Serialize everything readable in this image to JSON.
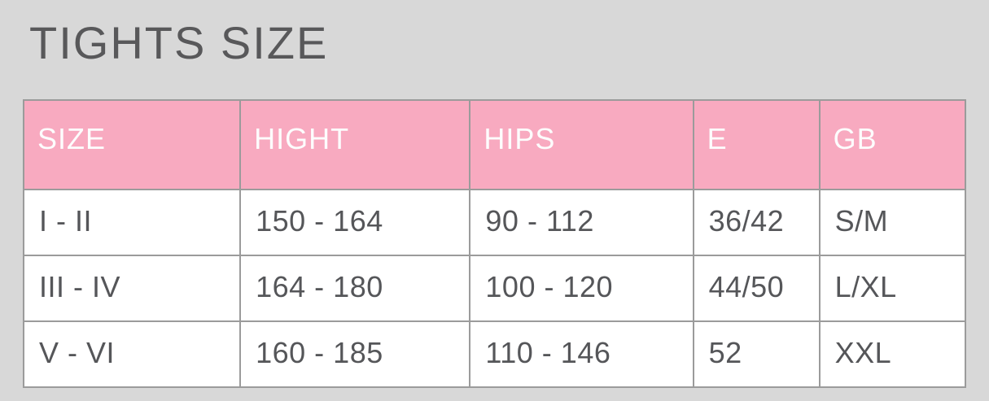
{
  "page": {
    "title": "TIGHTS SIZE"
  },
  "colors": {
    "background": "#d8d8d8",
    "title_text": "#58585a",
    "header_bg": "#f8aac0",
    "header_text": "#fdfdfd",
    "cell_bg": "#ffffff",
    "cell_text": "#555659",
    "border": "#9b9b9b"
  },
  "chart_data": {
    "type": "table",
    "title": "TIGHTS SIZE",
    "columns": [
      "SIZE",
      "HIGHT",
      "HIPS",
      "E",
      "GB"
    ],
    "rows": [
      [
        "I - II",
        "150 - 164",
        "90 - 112",
        "36/42",
        "S/M"
      ],
      [
        "III - IV",
        "164 - 180",
        "100 - 120",
        "44/50",
        "L/XL"
      ],
      [
        "V - VI",
        "160 - 185",
        "110 - 146",
        "52",
        "XXL"
      ]
    ],
    "layout": {
      "header_position": "top",
      "grid": true
    }
  }
}
